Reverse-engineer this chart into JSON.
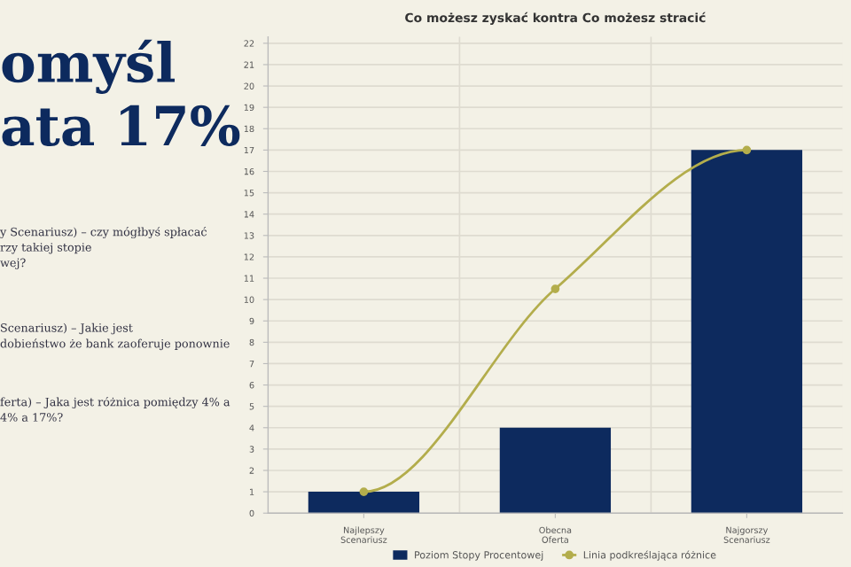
{
  "chart_data": {
    "type": "bar",
    "title": "Co możesz zyskać kontra Co możesz stracić",
    "categories": [
      "Najlepszy\nScenariusz",
      "Obecna\nOferta",
      "Najgorszy\nScenariusz"
    ],
    "series": [
      {
        "name": "Poziom Stopy Procentowej",
        "color": "#0d2a5e",
        "values": [
          1,
          4,
          17
        ]
      },
      {
        "name": "Linia podkreślająca różnice",
        "type": "line",
        "color": "#b3ad4c",
        "values": [
          1,
          10.5,
          17
        ]
      }
    ],
    "ylim": [
      0,
      22.3
    ],
    "yticks": [
      0,
      1,
      2,
      3,
      4,
      5,
      6,
      7,
      8,
      9,
      10,
      11,
      12,
      13,
      14,
      15,
      16,
      17,
      18,
      19,
      20,
      21,
      22
    ],
    "grid": true,
    "legend": "bottom",
    "marker": "circle",
    "line_style": "solid",
    "annotations": [
      "omyśl\nata 17%",
      "y Scenariusz) – czy mógłbyś spłacać\nrzy takiej stopie\nwej?",
      "Scenariusz) – Jakie jest\ndobieństwo że bank zaoferuje ponownie",
      "ferta) – Jaka jest różnica pomiędzy 4% a\n4% a 17%?"
    ]
  }
}
